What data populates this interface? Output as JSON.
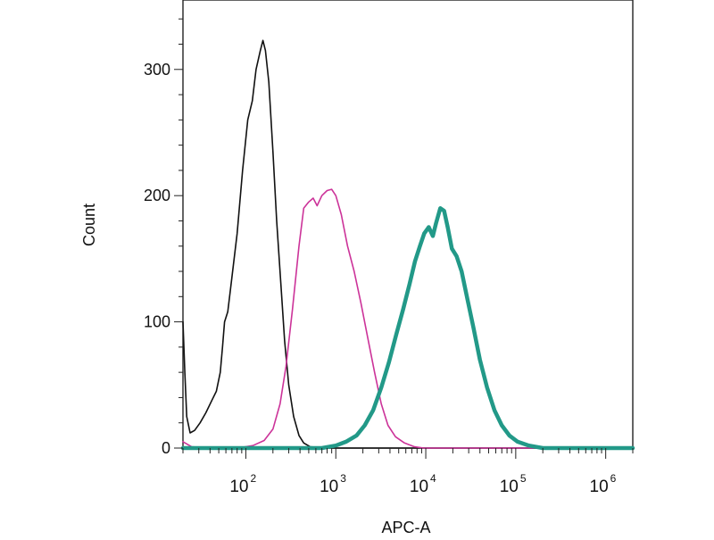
{
  "chart_data": {
    "type": "line",
    "xlabel": "APC-A",
    "ylabel": "Count",
    "xscale": "log",
    "xlim": [
      20,
      2000000
    ],
    "ylim": [
      0,
      355
    ],
    "grid": false,
    "legend": "none",
    "y_ticks": [
      {
        "value": 0,
        "label": "0"
      },
      {
        "value": 100,
        "label": "100"
      },
      {
        "value": 200,
        "label": "200"
      },
      {
        "value": 300,
        "label": "300"
      }
    ],
    "x_ticks": [
      {
        "value": 100,
        "base": "10",
        "exp": "2"
      },
      {
        "value": 1000,
        "base": "10",
        "exp": "3"
      },
      {
        "value": 10000,
        "base": "10",
        "exp": "4"
      },
      {
        "value": 100000,
        "base": "10",
        "exp": "5"
      },
      {
        "value": 1000000,
        "base": "10",
        "exp": "6"
      }
    ],
    "series": [
      {
        "color": "#111111",
        "stroke": 1.6,
        "points": [
          [
            20,
            100
          ],
          [
            21,
            60
          ],
          [
            22,
            25
          ],
          [
            24,
            12
          ],
          [
            27,
            14
          ],
          [
            31,
            20
          ],
          [
            36,
            28
          ],
          [
            42,
            38
          ],
          [
            47,
            45
          ],
          [
            52,
            60
          ],
          [
            55,
            80
          ],
          [
            58,
            100
          ],
          [
            63,
            108
          ],
          [
            70,
            135
          ],
          [
            80,
            170
          ],
          [
            92,
            220
          ],
          [
            105,
            260
          ],
          [
            118,
            275
          ],
          [
            130,
            300
          ],
          [
            145,
            315
          ],
          [
            155,
            323
          ],
          [
            165,
            315
          ],
          [
            180,
            290
          ],
          [
            200,
            235
          ],
          [
            220,
            180
          ],
          [
            245,
            130
          ],
          [
            270,
            85
          ],
          [
            300,
            50
          ],
          [
            340,
            25
          ],
          [
            390,
            10
          ],
          [
            440,
            4
          ],
          [
            520,
            1
          ],
          [
            800,
            0
          ],
          [
            2000000,
            0
          ]
        ]
      },
      {
        "color": "#cc3399",
        "stroke": 1.6,
        "points": [
          [
            20,
            5
          ],
          [
            25,
            1
          ],
          [
            40,
            0
          ],
          [
            80,
            0
          ],
          [
            120,
            2
          ],
          [
            160,
            6
          ],
          [
            200,
            15
          ],
          [
            240,
            35
          ],
          [
            280,
            65
          ],
          [
            330,
            110
          ],
          [
            390,
            160
          ],
          [
            440,
            190
          ],
          [
            500,
            195
          ],
          [
            560,
            198
          ],
          [
            620,
            192
          ],
          [
            700,
            200
          ],
          [
            800,
            204
          ],
          [
            900,
            205
          ],
          [
            1000,
            200
          ],
          [
            1150,
            185
          ],
          [
            1350,
            160
          ],
          [
            1600,
            140
          ],
          [
            1900,
            115
          ],
          [
            2300,
            85
          ],
          [
            2700,
            60
          ],
          [
            3200,
            35
          ],
          [
            3800,
            18
          ],
          [
            4600,
            9
          ],
          [
            5800,
            4
          ],
          [
            7500,
            1
          ],
          [
            9500,
            0
          ],
          [
            2000000,
            0
          ]
        ]
      },
      {
        "color": "#229988",
        "stroke": 4.5,
        "points": [
          [
            20,
            0
          ],
          [
            700,
            0
          ],
          [
            1000,
            2
          ],
          [
            1300,
            5
          ],
          [
            1700,
            10
          ],
          [
            2100,
            18
          ],
          [
            2600,
            30
          ],
          [
            3200,
            48
          ],
          [
            3900,
            68
          ],
          [
            4700,
            90
          ],
          [
            5600,
            110
          ],
          [
            6600,
            130
          ],
          [
            7600,
            148
          ],
          [
            8600,
            160
          ],
          [
            9600,
            170
          ],
          [
            10800,
            175
          ],
          [
            12000,
            168
          ],
          [
            13000,
            178
          ],
          [
            14500,
            190
          ],
          [
            16000,
            188
          ],
          [
            17500,
            175
          ],
          [
            19500,
            158
          ],
          [
            22000,
            152
          ],
          [
            25000,
            140
          ],
          [
            29000,
            118
          ],
          [
            34000,
            95
          ],
          [
            40000,
            70
          ],
          [
            48000,
            48
          ],
          [
            58000,
            30
          ],
          [
            70000,
            18
          ],
          [
            85000,
            10
          ],
          [
            105000,
            5
          ],
          [
            140000,
            2
          ],
          [
            200000,
            0
          ],
          [
            2000000,
            0
          ]
        ]
      }
    ]
  }
}
